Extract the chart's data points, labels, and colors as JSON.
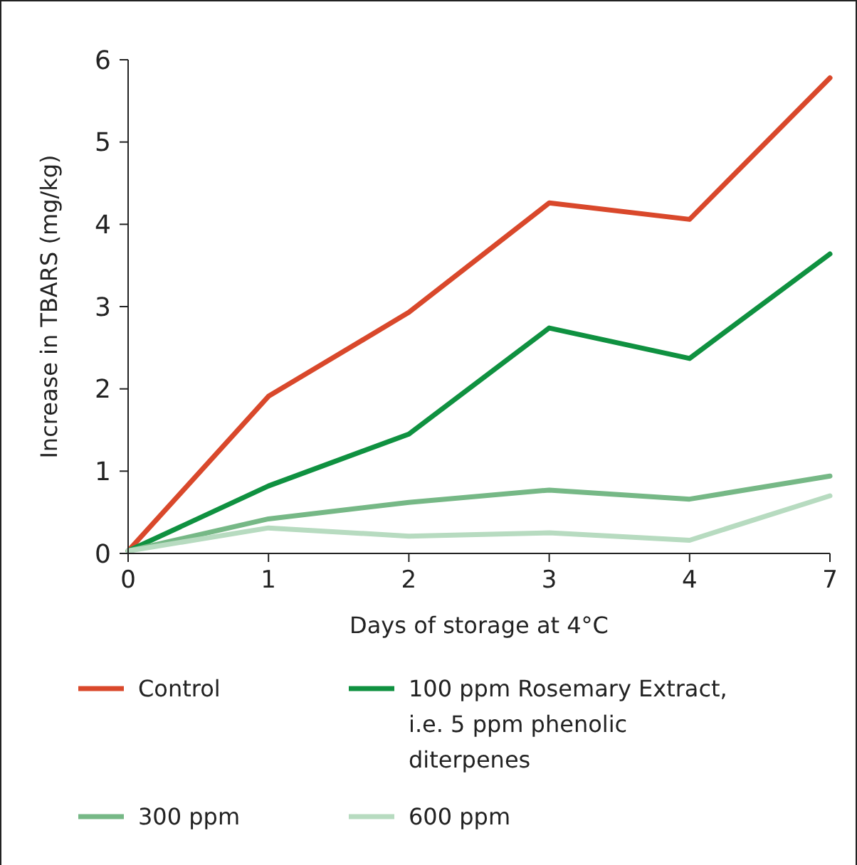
{
  "chart_data": {
    "type": "line",
    "xlabel": "Days of storage at 4°C",
    "ylabel": "Increase in TBARS (mg/kg)",
    "categories": [
      "0",
      "1",
      "2",
      "3",
      "4",
      "7"
    ],
    "ylim": [
      0,
      6
    ],
    "yticks": [
      0,
      1,
      2,
      3,
      4,
      5,
      6
    ],
    "grid": false,
    "legend": "bottom",
    "marker": "none",
    "line_style": "solid",
    "series": [
      {
        "name": "Control",
        "color": "#d9482b",
        "values": [
          0.03,
          1.91,
          2.93,
          4.26,
          4.06,
          5.78
        ]
      },
      {
        "name": "100 ppm Rosemary Extract, i.e. 5 ppm phenolic diterpenes",
        "color": "#0f9140",
        "values": [
          0.03,
          0.82,
          1.45,
          2.74,
          2.37,
          3.64
        ]
      },
      {
        "name": "300 ppm",
        "color": "#76b886",
        "values": [
          0.03,
          0.42,
          0.62,
          0.77,
          0.66,
          0.94
        ]
      },
      {
        "name": "600 ppm",
        "color": "#b7dbc0",
        "values": [
          0.03,
          0.31,
          0.21,
          0.25,
          0.16,
          0.7
        ]
      }
    ]
  }
}
